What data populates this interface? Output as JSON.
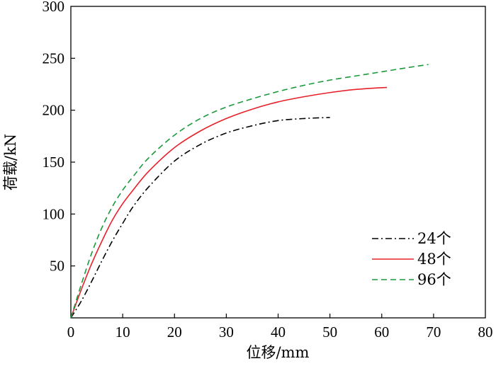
{
  "chart_data": {
    "type": "line",
    "title": "",
    "xlabel": "位移/mm",
    "ylabel": "荷载/kN",
    "xlim": [
      0,
      80
    ],
    "ylim": [
      0,
      300
    ],
    "xticks": [
      0,
      10,
      20,
      30,
      40,
      50,
      60,
      70,
      80
    ],
    "yticks": [
      50,
      100,
      150,
      200,
      250,
      300
    ],
    "y_zero_label": "0",
    "grid": false,
    "legend_position": "bottom-right",
    "series": [
      {
        "name": "24个",
        "color": "#000000",
        "dash": "dash-dot",
        "x": [
          0,
          2,
          4,
          6,
          8,
          10,
          12,
          15,
          20,
          25,
          30,
          35,
          40,
          45,
          50
        ],
        "y": [
          0,
          16,
          35,
          55,
          74,
          91,
          107,
          126,
          151,
          167,
          178,
          185,
          190,
          192,
          193
        ]
      },
      {
        "name": "48个",
        "color": "#e8202a",
        "dash": "solid",
        "x": [
          0,
          2,
          4,
          6,
          8,
          10,
          12,
          15,
          20,
          25,
          30,
          35,
          40,
          45,
          50,
          55,
          61
        ],
        "y": [
          0,
          27,
          52,
          74,
          94,
          110,
          123,
          141,
          164,
          180,
          192,
          201,
          208,
          213,
          217,
          220,
          222
        ]
      },
      {
        "name": "96个",
        "color": "#1a9a3c",
        "dash": "dashed",
        "x": [
          0,
          2,
          4,
          6,
          8,
          10,
          12,
          15,
          20,
          25,
          30,
          35,
          40,
          45,
          50,
          55,
          60,
          65,
          69
        ],
        "y": [
          0,
          32,
          62,
          87,
          107,
          123,
          136,
          154,
          176,
          192,
          203,
          211,
          218,
          224,
          229,
          233,
          237,
          241,
          244
        ]
      }
    ]
  }
}
